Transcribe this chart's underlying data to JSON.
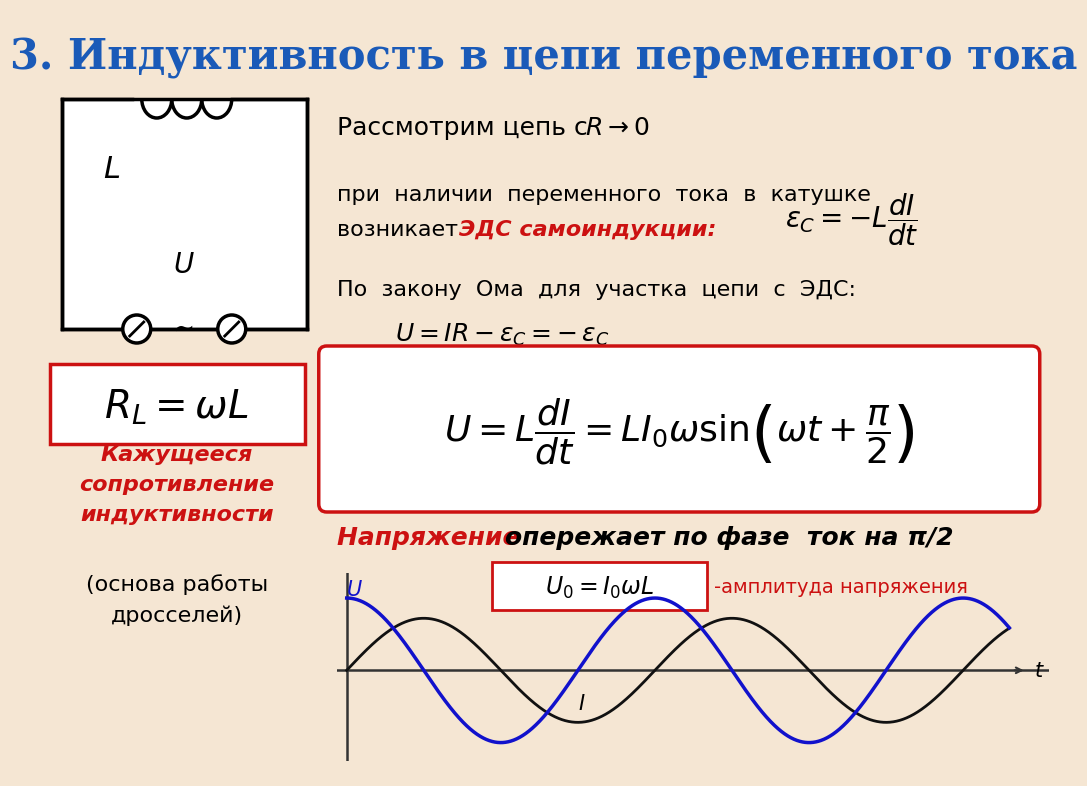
{
  "bg_color": "#f5e6d3",
  "title": "3. Индуктивность в цепи переменного тока",
  "title_color": "#1a5ab8",
  "red_color": "#cc1111",
  "dark_red_color": "#990000",
  "wave_U_color": "#1111cc",
  "wave_I_color": "#111111",
  "line_color": "#555555"
}
